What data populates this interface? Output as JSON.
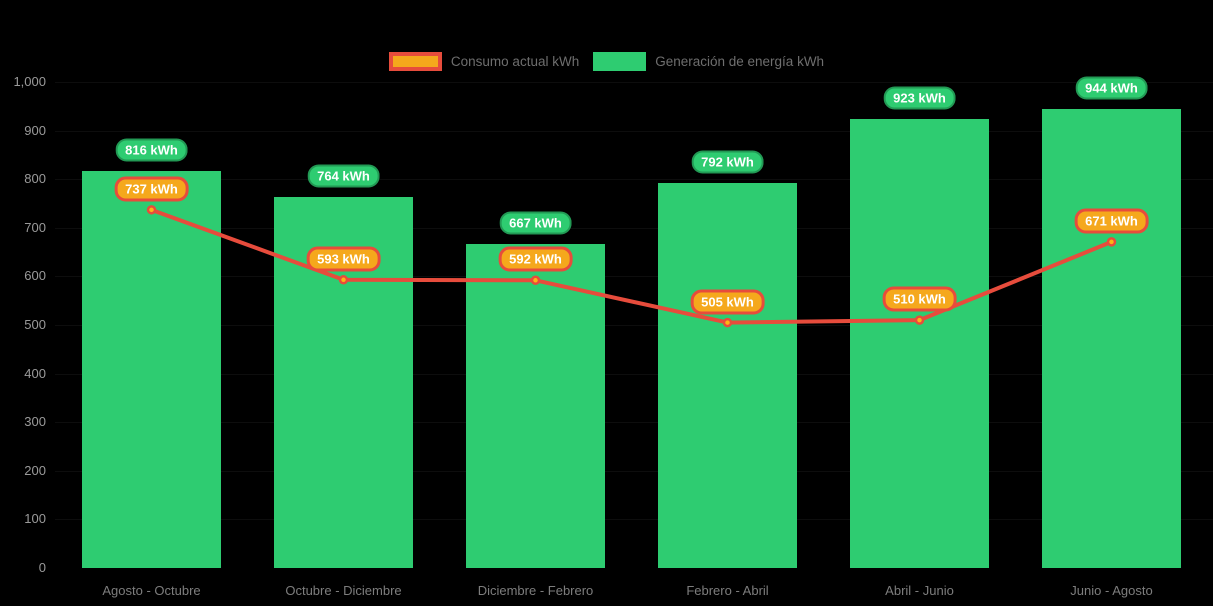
{
  "chart_data": {
    "type": "combo",
    "background": "#000000",
    "legend_position": "top",
    "grid": "horizontal-faint",
    "value_suffix": " kWh",
    "categories": [
      "Agosto - Octubre",
      "Octubre - Diciembre",
      "Diciembre - Febrero",
      "Febrero - Abril",
      "Abril - Junio",
      "Junio - Agosto"
    ],
    "series": [
      {
        "name": "Consumo actual kWh",
        "type": "line",
        "values": [
          737,
          593,
          592,
          505,
          510,
          671
        ],
        "color": "#e74c3c",
        "point_fill": "#fdb515",
        "label_bg": "#f5a81c",
        "label_border": "#e74c3c"
      },
      {
        "name": "Generación de energía kWh",
        "type": "bar",
        "values": [
          816,
          764,
          667,
          792,
          923,
          944
        ],
        "color": "#2ecc71",
        "label_bg": "#2ecc71"
      }
    ],
    "ylim": [
      0,
      1000
    ],
    "ytick_step": 100,
    "ytick_labels": [
      "0",
      "100",
      "200",
      "300",
      "400",
      "500",
      "600",
      "700",
      "800",
      "900",
      "1,000"
    ],
    "axis_text_color": "#9a9a9a"
  }
}
